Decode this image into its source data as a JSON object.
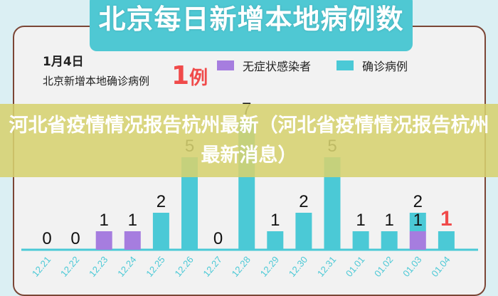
{
  "header": {
    "title": "北京每日新增本地病例数",
    "date": "1月4日",
    "subtitle": "北京新增本地确诊病例",
    "highlight_number": "1",
    "highlight_unit": "例"
  },
  "banner": {
    "text": "河北省疫情情况报告杭州最新（河北省疫情情况报告杭州最新消息）"
  },
  "chart_data": {
    "type": "bar",
    "stacked": true,
    "categories": [
      "12.21",
      "12.22",
      "12.23",
      "12.24",
      "12.25",
      "12.26",
      "12.27",
      "12.28",
      "12.29",
      "12.30",
      "12.31",
      "01.01",
      "01.02",
      "01.03",
      "01.04"
    ],
    "series": [
      {
        "name": "无症状感染者",
        "color": "#a67ddf",
        "values": [
          0,
          0,
          1,
          1,
          0,
          0,
          0,
          0,
          0,
          0,
          0,
          0,
          0,
          1,
          0
        ]
      },
      {
        "name": "确诊病例",
        "color": "#4bc9d6",
        "values": [
          0,
          0,
          0,
          0,
          2,
          5,
          0,
          7,
          1,
          2,
          5,
          1,
          1,
          1,
          1
        ]
      }
    ],
    "labels": [
      "0",
      "0",
      "1",
      "1",
      "2",
      "5",
      "0",
      "7",
      "1",
      "2",
      "5",
      "1",
      "1",
      "2",
      "1"
    ],
    "inner_labels": {
      "01.03": "1"
    },
    "highlight_color": "#f04a4a",
    "legend": "top-right",
    "grid": false
  }
}
